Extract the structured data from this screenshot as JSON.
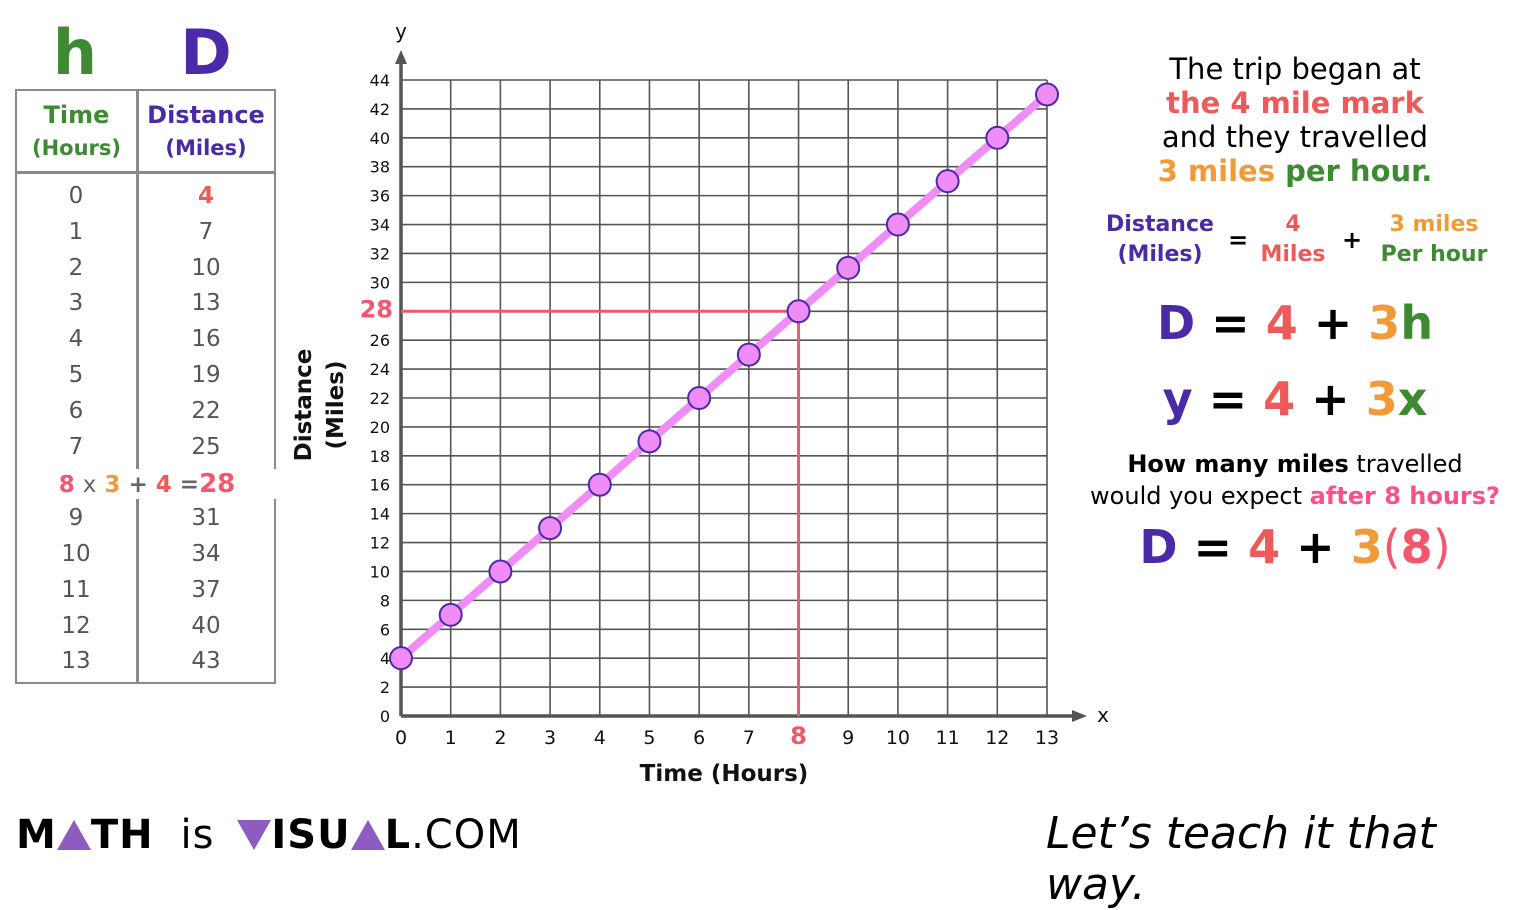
{
  "variables": {
    "time_symbol": "h",
    "distance_symbol": "D"
  },
  "table": {
    "headers": [
      {
        "title": "Time",
        "unit": "(Hours)"
      },
      {
        "title": "Distance",
        "unit": "(Miles)"
      }
    ],
    "rows": [
      [
        "0",
        "4"
      ],
      [
        "1",
        "7"
      ],
      [
        "2",
        "10"
      ],
      [
        "3",
        "13"
      ],
      [
        "4",
        "16"
      ],
      [
        "5",
        "19"
      ],
      [
        "6",
        "22"
      ],
      [
        "7",
        "25"
      ],
      [
        "8",
        "28"
      ],
      [
        "9",
        "31"
      ],
      [
        "10",
        "34"
      ],
      [
        "11",
        "37"
      ],
      [
        "12",
        "40"
      ],
      [
        "13",
        "43"
      ]
    ],
    "calc_row": {
      "h": "8",
      "times": "x",
      "rate": "3",
      "plus": "+",
      "start": "4",
      "equals": "=",
      "result": "28"
    }
  },
  "chart_data": {
    "type": "line",
    "title": "",
    "xlabel": "Time (Hours)",
    "ylabel": "Distance (Miles)",
    "x_axis_symbol": "x",
    "y_axis_symbol": "y",
    "x": [
      0,
      1,
      2,
      3,
      4,
      5,
      6,
      7,
      8,
      9,
      10,
      11,
      12,
      13
    ],
    "series": [
      {
        "name": "Distance",
        "values": [
          4,
          7,
          10,
          13,
          16,
          19,
          22,
          25,
          28,
          31,
          34,
          37,
          40,
          43
        ]
      }
    ],
    "xlim": [
      0,
      13
    ],
    "ylim": [
      0,
      44
    ],
    "x_ticks": [
      "0",
      "1",
      "2",
      "3",
      "4",
      "5",
      "6",
      "7",
      "8",
      "9",
      "10",
      "11",
      "12",
      "13"
    ],
    "y_ticks": [
      "0",
      "2",
      "4",
      "6",
      "8",
      "10",
      "12",
      "14",
      "16",
      "18",
      "20",
      "22",
      "24",
      "26",
      "28",
      "30",
      "32",
      "34",
      "36",
      "38",
      "40",
      "42",
      "44"
    ],
    "grid": true,
    "annotations": [
      {
        "type": "reference-lines",
        "x": 8,
        "y": 28,
        "x_label": "8",
        "y_label": "28",
        "color": "#f4566f"
      }
    ],
    "line_color": "#f08cf5",
    "marker_fill": "#f08cf5",
    "marker_stroke": "#4b2aa8"
  },
  "explanation": {
    "line1": "The trip began at",
    "line2": "the 4 mile mark",
    "line3": "and they travelled",
    "line4_a": "3 miles",
    "line4_b": "per hour."
  },
  "word_equation": {
    "lhs_1": "Distance",
    "lhs_2": "(Miles)",
    "eq": "=",
    "start_1": "4",
    "start_2": "Miles",
    "plus": "+",
    "rate_1": "3 miles",
    "rate_2": "Per hour"
  },
  "equation_vars": {
    "lhs": "D",
    "eq": "=",
    "start": "4",
    "plus": "+",
    "rate": "3",
    "var": "h"
  },
  "equation_xy": {
    "lhs": "y",
    "eq": "=",
    "start": "4",
    "plus": "+",
    "rate": "3",
    "var": "x"
  },
  "question": {
    "bold": "How many miles",
    "rest1": " travelled",
    "line2": "would you expect ",
    "highlight": "after 8 hours?"
  },
  "substitution": {
    "lhs": "D",
    "eq": "=",
    "start": "4",
    "plus": "+",
    "rate": "3",
    "open": "(",
    "value": "8",
    "close": ")"
  },
  "footer": {
    "logo_m": "M",
    "logo_th": "TH",
    "logo_is": "is",
    "logo_isu": "ISU",
    "logo_l": "L",
    "logo_com": ".COM",
    "tagline": "Let’s teach it that way."
  },
  "colors": {
    "green": "#3e8a33",
    "purple": "#4b2aa8",
    "red": "#ee5a5a",
    "orange": "#f29a38",
    "pink": "#ff4f8b",
    "reference": "#f4566f",
    "logo_triangle": "#8e5cc0"
  }
}
